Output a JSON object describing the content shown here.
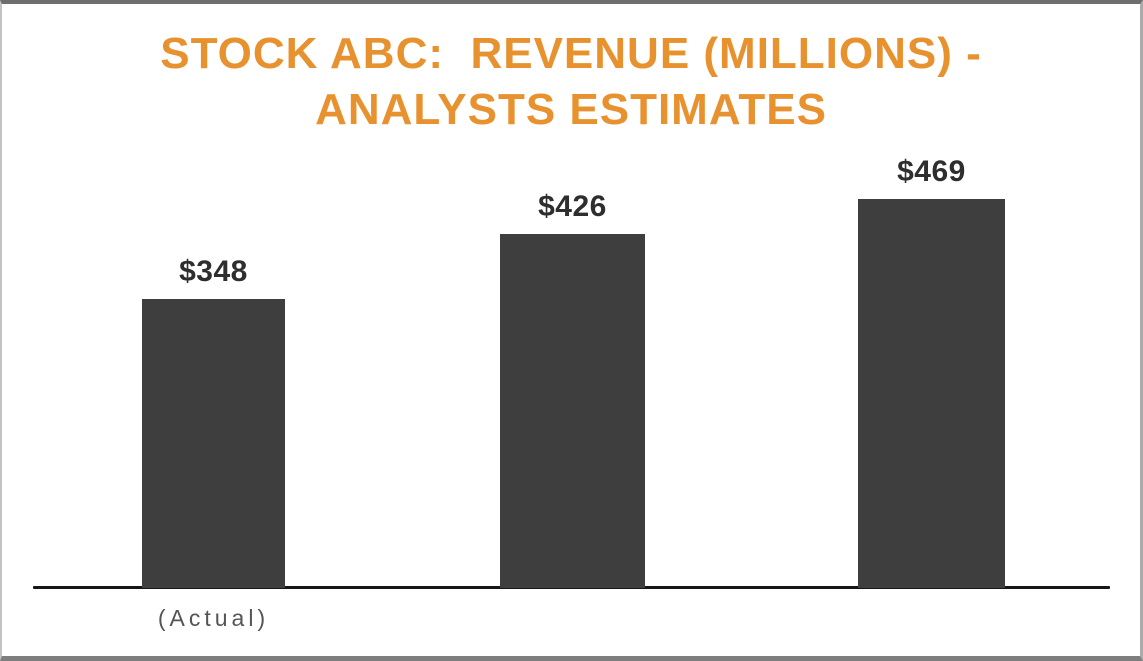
{
  "title": {
    "line1": "STOCK ABC:  REVENUE (MILLIONS) -",
    "line2": "ANALYSTS ESTIMATES",
    "color": "#E8922F"
  },
  "chart_data": {
    "type": "bar",
    "title": "STOCK ABC:  REVENUE (MILLIONS) - ANALYSTS ESTIMATES",
    "categories": [
      "(Actual)",
      "",
      ""
    ],
    "values": [
      348,
      426,
      469
    ],
    "value_labels": [
      "$348",
      "$426",
      "$469"
    ],
    "xlabel": "",
    "ylabel": "",
    "ylim": [
      0,
      500
    ],
    "grid": false,
    "legend": false,
    "bar_color": "#3E3E3E",
    "value_label_color": "#2E2E2E",
    "axis_line_color": "#161616",
    "category_label_color": "#555555",
    "title_color": "#E8922F",
    "background_color": "#FFFFFF"
  }
}
